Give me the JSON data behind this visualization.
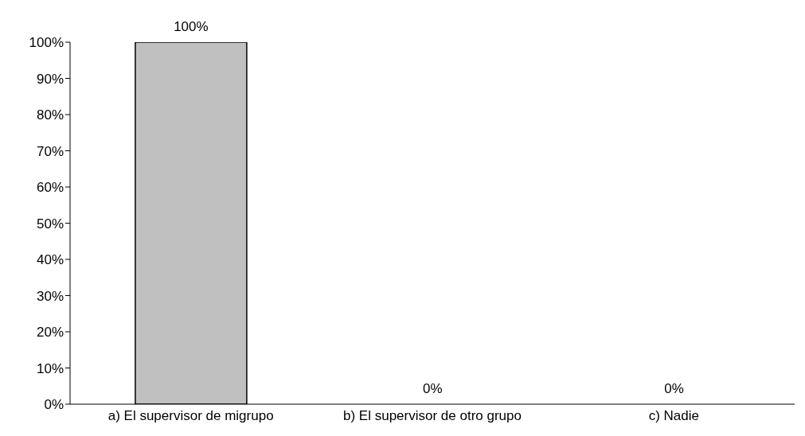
{
  "chart_data": {
    "type": "bar",
    "categories": [
      "a) El supervisor de migrupo",
      "b) El supervisor de otro grupo",
      "c) Nadie"
    ],
    "values": [
      100,
      0,
      0
    ],
    "color": "#c0c0c0",
    "value_labels": [
      "100%",
      "0%",
      "0%"
    ],
    "ylim": [
      0,
      100
    ],
    "yticks": [
      {
        "value": 0,
        "label": "0%"
      },
      {
        "value": 10,
        "label": "10%"
      },
      {
        "value": 20,
        "label": "20%"
      },
      {
        "value": 30,
        "label": "30%"
      },
      {
        "value": 40,
        "label": "40%"
      },
      {
        "value": 50,
        "label": "50%"
      },
      {
        "value": 60,
        "label": "60%"
      },
      {
        "value": 70,
        "label": "70%"
      },
      {
        "value": 80,
        "label": "80%"
      },
      {
        "value": 90,
        "label": "90%"
      },
      {
        "value": 100,
        "label": "100%"
      }
    ],
    "grid": false,
    "legend": false
  }
}
